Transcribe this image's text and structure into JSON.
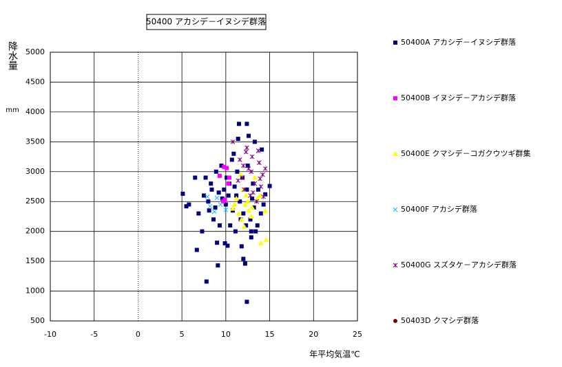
{
  "chart_data": {
    "type": "scatter",
    "title": "50400 アカシデ－イヌシデ群落",
    "x_label": "年平均気温℃",
    "y_label": "降水量",
    "y_unit_label": "mm",
    "xlim": [
      -10,
      25
    ],
    "xticks": [
      -10,
      -5,
      0,
      5,
      10,
      15,
      20,
      25
    ],
    "ylim": [
      500,
      5000
    ],
    "yticks": [
      500,
      1000,
      1500,
      2000,
      2500,
      3000,
      3500,
      4000,
      4500,
      5000
    ],
    "grid": true,
    "legend": "right",
    "series": [
      {
        "name": "50400A アカシデ－イヌシデ群落",
        "color": "#000080",
        "marker": "square",
        "x": [
          12.4,
          7.8,
          9.1,
          12.2,
          6.7,
          9.0,
          12.0,
          5.1,
          5.5,
          5.8,
          6.5,
          11.5,
          12.4,
          14.1,
          14.5,
          15.0,
          13.3,
          6.9,
          7.3,
          9.9,
          10.2,
          11.8,
          13.4,
          12.9,
          7.5,
          8.0,
          8.4,
          8.8,
          9.2,
          9.6,
          10.0,
          10.4,
          10.8,
          11.2,
          11.6,
          12.0,
          12.4,
          12.8,
          13.2,
          13.6,
          14.0,
          7.7,
          8.3,
          8.9,
          9.5,
          10.1,
          10.7,
          11.3,
          11.9,
          12.5,
          13.1,
          13.7,
          8.6,
          9.3,
          10.5,
          11.1,
          11.7,
          12.3,
          12.9,
          10.9,
          11.4,
          12.6,
          9.8,
          10.3,
          11.0,
          13.0,
          8.1,
          14.3
        ],
        "y": [
          820,
          1160,
          1430,
          1460,
          1690,
          1810,
          1540,
          2630,
          2420,
          2450,
          2900,
          3800,
          3800,
          3370,
          2620,
          2760,
          3500,
          2300,
          2000,
          1800,
          1760,
          1750,
          2000,
          1900,
          2600,
          2500,
          2700,
          2400,
          2650,
          2550,
          2450,
          2800,
          2350,
          2600,
          2500,
          2300,
          2700,
          2200,
          2400,
          2100,
          2300,
          2900,
          2800,
          3000,
          3100,
          2900,
          3200,
          3000,
          2900,
          3100,
          2800,
          2700,
          2200,
          2100,
          2100,
          2000,
          2200,
          2100,
          2000,
          3300,
          3550,
          3600,
          2700,
          2600,
          2750,
          2550,
          2350,
          2450
        ]
      },
      {
        "name": "50400B イヌシデ－アカシデ群落",
        "color": "#ff00ff",
        "marker": "square",
        "x": [
          9.8,
          10.1,
          9.3,
          10.4,
          9.9,
          9.7,
          10.3
        ],
        "y": [
          3080,
          3060,
          2930,
          2900,
          2530,
          2500,
          2800
        ]
      },
      {
        "name": "50400E クマシデ－コガクウツギ群集",
        "color": "#ffff00",
        "marker": "triangle",
        "x": [
          14.0,
          14.6,
          14.5,
          12.1,
          11.5,
          12.3,
          11.0,
          13.0,
          12.5,
          11.8,
          13.6,
          12.9,
          11.2,
          12.0,
          13.3,
          11.7,
          12.6,
          10.8,
          13.9,
          12.2
        ],
        "y": [
          1800,
          1860,
          2340,
          2080,
          2300,
          2600,
          2450,
          2400,
          2500,
          2200,
          2550,
          2250,
          2550,
          2700,
          2900,
          2950,
          2350,
          2380,
          2600,
          2450
        ]
      },
      {
        "name": "50400F アカシデ群落",
        "color": "#00c0ff",
        "marker": "cross",
        "x": [
          7.9,
          9.4,
          10.0,
          8.7,
          9.0,
          8.2
        ],
        "y": [
          2580,
          2450,
          2360,
          2330,
          2560,
          2420
        ]
      },
      {
        "name": "50400G スズタケ－アカシデ群落",
        "color": "#800080",
        "marker": "star",
        "x": [
          10.8,
          12.3,
          13.0,
          13.8,
          12.6,
          14.2,
          11.9,
          13.3,
          12.1,
          14.0,
          12.8,
          13.5,
          11.6,
          12.4,
          13.7,
          14.5,
          12.9,
          11.4,
          13.1,
          14.3,
          12.0,
          13.9
        ],
        "y": [
          3500,
          3330,
          3250,
          3150,
          3050,
          2950,
          2900,
          2800,
          2700,
          2750,
          2600,
          2500,
          3200,
          3400,
          3350,
          3050,
          3000,
          2850,
          2650,
          2580,
          3100,
          2880
        ]
      },
      {
        "name": "50403D クマシデ群落",
        "color": "#800000",
        "marker": "circle",
        "x": [],
        "y": []
      }
    ]
  }
}
